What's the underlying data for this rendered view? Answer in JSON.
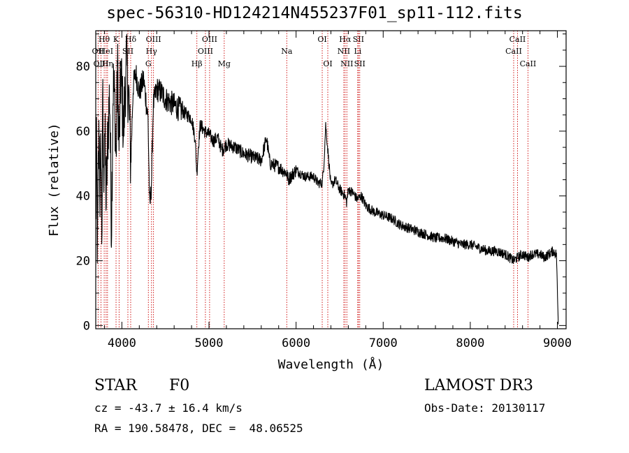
{
  "header": {
    "title": "spec-56310-HD124214N455237F01_sp11-112.fits"
  },
  "info": {
    "class_label": "STAR",
    "subclass": "F0",
    "survey": "LAMOST DR3",
    "cz": "cz = -43.7 ± 16.4 km/s",
    "obs_date": "Obs-Date: 20130117",
    "coords": "RA = 190.58478, DEC =  48.06525"
  },
  "chart_data": {
    "type": "line",
    "title": "spec-56310-HD124214N455237F01_sp11-112.fits",
    "xlabel": "Wavelength (Å)",
    "ylabel": "Flux (relative)",
    "xlim": [
      3700,
      9100
    ],
    "ylim": [
      -1,
      91
    ],
    "x_ticks": [
      4000,
      5000,
      6000,
      7000,
      8000,
      9000
    ],
    "y_ticks": [
      0,
      20,
      40,
      60,
      80
    ],
    "line_color": "#000000",
    "marker_color": "#cc0000",
    "series": [
      {
        "name": "flux",
        "x": [
          3700,
          3710,
          3720,
          3730,
          3740,
          3750,
          3760,
          3770,
          3780,
          3790,
          3800,
          3820,
          3840,
          3860,
          3880,
          3900,
          3920,
          3933,
          3950,
          3968,
          3990,
          4020,
          4050,
          4080,
          4102,
          4130,
          4160,
          4200,
          4250,
          4300,
          4320,
          4341,
          4360,
          4400,
          4450,
          4500,
          4550,
          4600,
          4650,
          4700,
          4750,
          4800,
          4840,
          4861,
          4880,
          4900,
          4950,
          5000,
          5050,
          5100,
          5150,
          5200,
          5300,
          5400,
          5500,
          5600,
          5660,
          5700,
          5800,
          5890,
          5910,
          6000,
          6100,
          6200,
          6250,
          6300,
          6320,
          6340,
          6400,
          6450,
          6500,
          6563,
          6580,
          6600,
          6650,
          6700,
          6750,
          6800,
          6850,
          6900,
          7000,
          7100,
          7200,
          7300,
          7400,
          7500,
          7600,
          7700,
          7800,
          7900,
          8000,
          8100,
          8200,
          8300,
          8400,
          8498,
          8542,
          8600,
          8662,
          8700,
          8800,
          8850,
          8900,
          8950,
          8990,
          9000,
          9010
        ],
        "y": [
          30,
          55,
          20,
          48,
          62,
          35,
          58,
          25,
          70,
          42,
          65,
          38,
          60,
          72,
          30,
          75,
          68,
          50,
          80,
          55,
          78,
          60,
          82,
          70,
          50,
          74,
          78,
          72,
          76,
          64,
          35,
          45,
          68,
          73,
          72,
          70,
          69,
          68,
          67,
          66,
          65,
          64,
          58,
          47,
          56,
          62,
          60,
          59,
          57,
          58,
          54,
          56,
          55,
          53,
          52,
          51,
          58,
          50,
          49,
          47,
          45,
          48,
          46,
          46,
          44,
          44,
          50,
          62,
          43,
          45,
          42,
          40,
          38,
          42,
          41,
          39,
          40,
          37,
          36,
          35,
          34,
          33,
          31,
          30,
          29,
          28,
          27,
          27,
          26,
          25,
          25,
          24,
          23,
          23,
          22,
          20,
          21,
          22,
          21,
          22,
          22,
          21,
          22,
          23,
          22,
          10,
          1
        ]
      }
    ],
    "line_markers": [
      {
        "label": "OII",
        "wl": 3727,
        "row": 1
      },
      {
        "label": "OIII",
        "wl": 3760,
        "row": 2
      },
      {
        "label": "Hθ",
        "wl": 3797,
        "row": 0
      },
      {
        "label": "HeI",
        "wl": 3819,
        "row": 1
      },
      {
        "label": "Hη",
        "wl": 3835,
        "row": 2
      },
      {
        "label": "K",
        "wl": 3933,
        "row": 0
      },
      {
        "label": "SII",
        "wl": 4069,
        "row": 1
      },
      {
        "label": "H",
        "wl": 3968,
        "row": 2
      },
      {
        "label": "Hδ",
        "wl": 4101,
        "row": 0
      },
      {
        "label": "OIII",
        "wl": 4363,
        "row": 0
      },
      {
        "label": "Hγ",
        "wl": 4340,
        "row": 1
      },
      {
        "label": "G",
        "wl": 4304,
        "row": 2
      },
      {
        "label": "Hβ",
        "wl": 4861,
        "row": 2
      },
      {
        "label": "OIII",
        "wl": 5007,
        "row": 0
      },
      {
        "label": "OIII",
        "wl": 4959,
        "row": 1
      },
      {
        "label": "Mg",
        "wl": 5175,
        "row": 2
      },
      {
        "label": "Na",
        "wl": 5893,
        "row": 1
      },
      {
        "label": "OI",
        "wl": 6300,
        "row": 0
      },
      {
        "label": "OI",
        "wl": 6364,
        "row": 2
      },
      {
        "label": "Hα",
        "wl": 6563,
        "row": 0
      },
      {
        "label": "NII",
        "wl": 6548,
        "row": 1
      },
      {
        "label": "NII",
        "wl": 6583,
        "row": 2
      },
      {
        "label": "SII",
        "wl": 6716,
        "row": 0
      },
      {
        "label": "Li",
        "wl": 6708,
        "row": 1
      },
      {
        "label": "SII",
        "wl": 6731,
        "row": 2
      },
      {
        "label": "CaII",
        "wl": 8542,
        "row": 0
      },
      {
        "label": "CaII",
        "wl": 8498,
        "row": 1
      },
      {
        "label": "CaII",
        "wl": 8662,
        "row": 2
      }
    ]
  }
}
